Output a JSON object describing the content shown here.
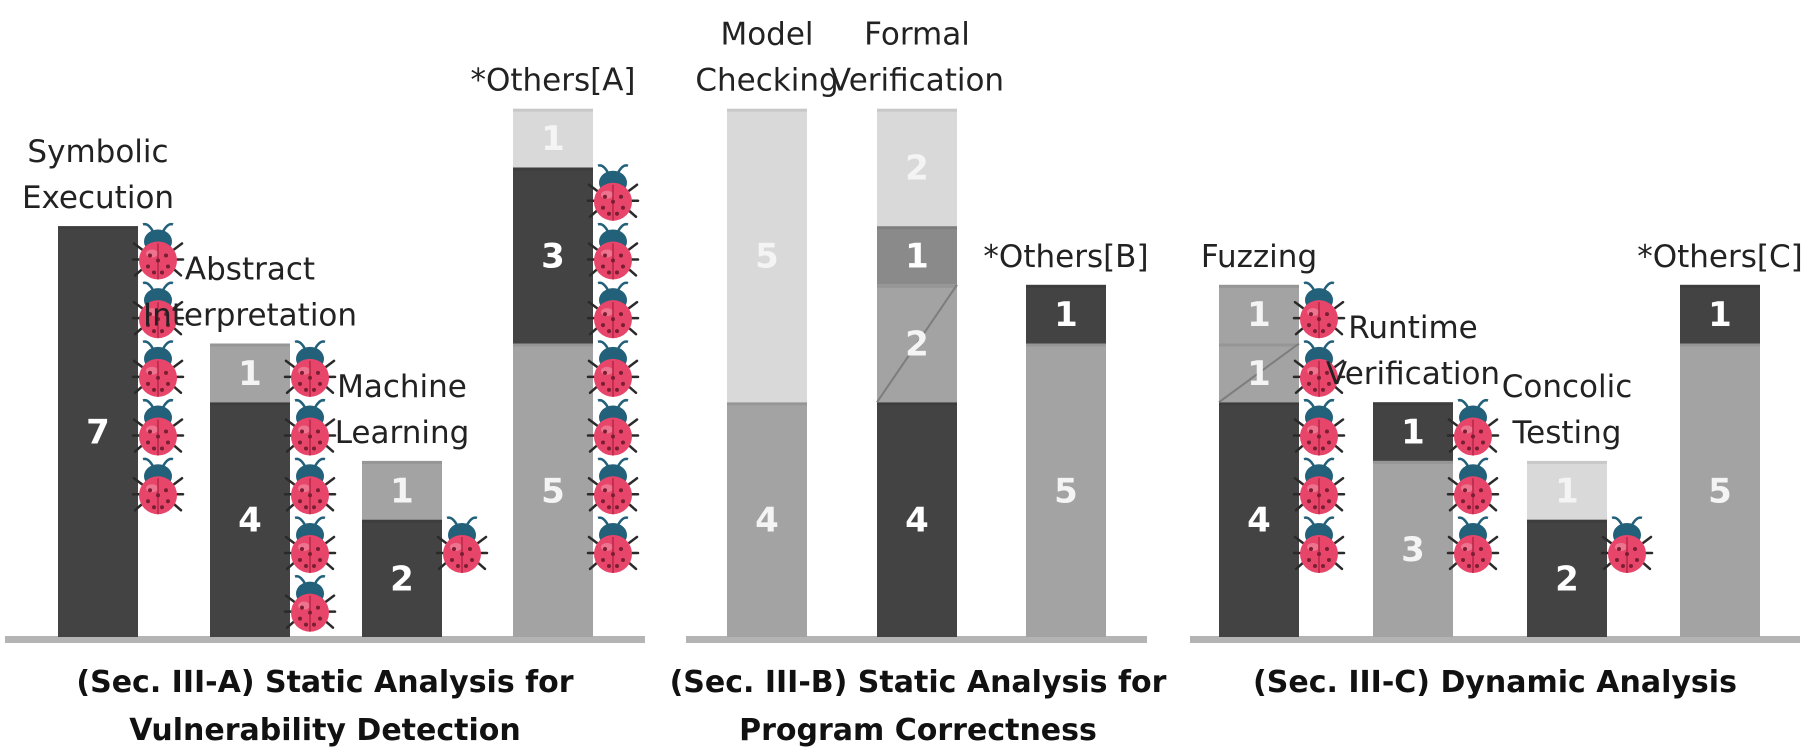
{
  "chart_data": [
    {
      "type": "bar",
      "stacked": true,
      "title": [
        "(Sec. III-A) Static Analysis for",
        "Vulnerability Detection"
      ],
      "categories": [
        {
          "label": [
            "Symbolic",
            "Execution"
          ],
          "segments": [
            {
              "value": 7,
              "shade": "dark",
              "bugs": 5
            }
          ]
        },
        {
          "label": [
            "Abstract",
            "Interpretation"
          ],
          "segments": [
            {
              "value": 4,
              "shade": "dark",
              "bugs": 4
            },
            {
              "value": 1,
              "shade": "mid",
              "bugs": 1
            }
          ]
        },
        {
          "label": [
            "Machine",
            "Learning"
          ],
          "segments": [
            {
              "value": 2,
              "shade": "dark",
              "bugs": 1
            },
            {
              "value": 1,
              "shade": "mid",
              "bugs": 0
            }
          ]
        },
        {
          "label": [
            "*Others[A]"
          ],
          "segments": [
            {
              "value": 5,
              "shade": "mid",
              "bugs": 4
            },
            {
              "value": 3,
              "shade": "dark",
              "bugs": 3
            },
            {
              "value": 1,
              "shade": "light",
              "bugs": 0
            }
          ]
        }
      ]
    },
    {
      "type": "bar",
      "stacked": true,
      "title": [
        "(Sec. III-B) Static Analysis for",
        "Program Correctness"
      ],
      "categories": [
        {
          "label": [
            "Model",
            "Checking"
          ],
          "segments": [
            {
              "value": 4,
              "shade": "mid",
              "bugs": 0
            },
            {
              "value": 5,
              "shade": "light",
              "bugs": 0
            }
          ]
        },
        {
          "label": [
            "Formal",
            "Verification"
          ],
          "segments": [
            {
              "value": 4,
              "shade": "dark",
              "bugs": 0
            },
            {
              "value": 2,
              "shade": "mid",
              "bugs": 0,
              "diagonal": true
            },
            {
              "value": 1,
              "shade": "midDark",
              "bugs": 0
            },
            {
              "value": 2,
              "shade": "light",
              "bugs": 0
            }
          ]
        },
        {
          "label": [
            "*Others[B]"
          ],
          "segments": [
            {
              "value": 5,
              "shade": "mid",
              "bugs": 0
            },
            {
              "value": 1,
              "shade": "dark",
              "bugs": 0
            }
          ]
        }
      ]
    },
    {
      "type": "bar",
      "stacked": true,
      "title": [
        "(Sec. III-C) Dynamic Analysis"
      ],
      "categories": [
        {
          "label": [
            "Fuzzing"
          ],
          "segments": [
            {
              "value": 4,
              "shade": "dark",
              "bugs": 3
            },
            {
              "value": 1,
              "shade": "mid",
              "bugs": 1,
              "diagonal": true
            },
            {
              "value": 1,
              "shade": "mid",
              "bugs": 1
            }
          ]
        },
        {
          "label": [
            "Runtime",
            "Verification"
          ],
          "segments": [
            {
              "value": 3,
              "shade": "mid",
              "bugs": 2
            },
            {
              "value": 1,
              "shade": "dark",
              "bugs": 1
            }
          ]
        },
        {
          "label": [
            "Concolic",
            "Testing"
          ],
          "segments": [
            {
              "value": 2,
              "shade": "dark",
              "bugs": 1
            },
            {
              "value": 1,
              "shade": "light",
              "bugs": 0
            }
          ]
        },
        {
          "label": [
            "*Others[C]"
          ],
          "segments": [
            {
              "value": 5,
              "shade": "mid",
              "bugs": 0
            },
            {
              "value": 1,
              "shade": "dark",
              "bugs": 0
            }
          ]
        }
      ]
    }
  ],
  "colors": {
    "dark": "#434343",
    "midDark": "#8a8a8a",
    "mid": "#a3a3a3",
    "light": "#d9d9d9",
    "axis": "#b4b4b4",
    "bug_body": "#e8456a",
    "bug_head": "#23607a",
    "text": "#222222"
  },
  "icons": {
    "bug": "ladybug-icon"
  }
}
